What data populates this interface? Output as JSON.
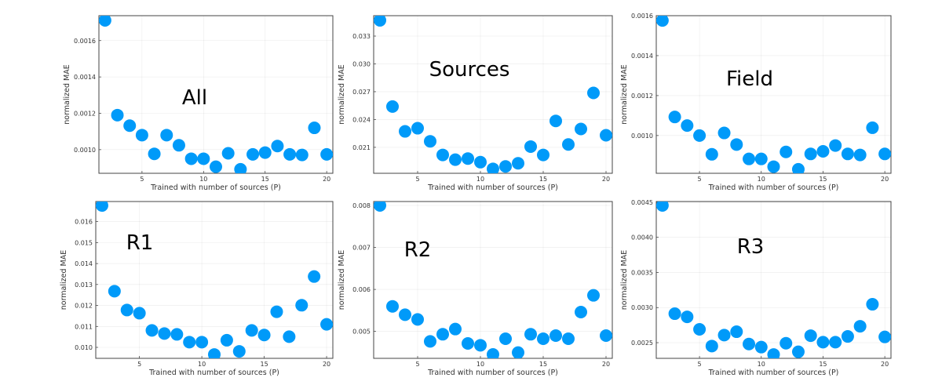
{
  "chart_data": [
    {
      "type": "scatter",
      "annotation": "All",
      "xlabel": "Trained with number of sources (P)",
      "ylabel": "normalized MAE",
      "xlim": [
        1.5,
        20.5
      ],
      "ylim": [
        0.00087,
        0.001737
      ],
      "xticks": [
        5,
        10,
        15,
        20
      ],
      "yticks": [
        0.001,
        0.0012,
        0.0014,
        0.0016
      ],
      "ytick_labels": [
        "0.0010",
        "0.0012",
        "0.0014",
        "0.0016"
      ],
      "grid": true,
      "color": "#009af9",
      "x": [
        2,
        3,
        4,
        5,
        6,
        7,
        8,
        9,
        10,
        11,
        12,
        13,
        14,
        15,
        16,
        17,
        18,
        19,
        20
      ],
      "y": [
        0.001711,
        0.00119,
        0.001132,
        0.00108,
        0.000977,
        0.00108,
        0.001024,
        0.00095,
        0.00095,
        0.000906,
        0.00098,
        0.000892,
        0.000974,
        0.000984,
        0.00102,
        0.000974,
        0.000971,
        0.00112,
        0.000974
      ]
    },
    {
      "type": "scatter",
      "annotation": "Sources",
      "xlabel": "Trained with number of sources (P)",
      "ylabel": "normalized MAE",
      "xlim": [
        1.5,
        20.5
      ],
      "ylim": [
        0.0182,
        0.0352
      ],
      "xticks": [
        5,
        10,
        15,
        20
      ],
      "yticks": [
        0.021,
        0.024,
        0.027,
        0.03,
        0.033
      ],
      "ytick_labels": [
        "0.021",
        "0.024",
        "0.027",
        "0.030",
        "0.033"
      ],
      "grid": true,
      "color": "#009af9",
      "x": [
        2,
        3,
        4,
        5,
        6,
        7,
        8,
        9,
        10,
        11,
        12,
        13,
        14,
        15,
        16,
        17,
        18,
        19,
        20
      ],
      "y": [
        0.0347,
        0.0254,
        0.02272,
        0.02306,
        0.02165,
        0.02018,
        0.01967,
        0.01979,
        0.0194,
        0.01868,
        0.01894,
        0.01928,
        0.02108,
        0.02018,
        0.02385,
        0.02131,
        0.02298,
        0.02687,
        0.0223
      ]
    },
    {
      "type": "scatter",
      "annotation": "Field",
      "xlabel": "Trained with number of sources (P)",
      "ylabel": "normalized MAE",
      "xlim": [
        1.5,
        20.5
      ],
      "ylim": [
        0.000811,
        0.0016
      ],
      "xticks": [
        5,
        10,
        15,
        20
      ],
      "yticks": [
        0.001,
        0.0012,
        0.0014,
        0.0016
      ],
      "ytick_labels": [
        "0.0010",
        "0.0012",
        "0.0014",
        "0.0016"
      ],
      "grid": true,
      "color": "#009af9",
      "x": [
        2,
        3,
        4,
        5,
        6,
        7,
        8,
        9,
        10,
        11,
        12,
        13,
        14,
        15,
        16,
        17,
        18,
        19,
        20
      ],
      "y": [
        0.001576,
        0.001093,
        0.00105,
        0.001,
        0.000906,
        0.001013,
        0.000955,
        0.000883,
        0.000883,
        0.000844,
        0.000918,
        0.000831,
        0.000908,
        0.000921,
        0.00095,
        0.000908,
        0.000903,
        0.001039,
        0.000908
      ]
    },
    {
      "type": "scatter",
      "annotation": "R1",
      "xlabel": "Trained with number of sources (P)",
      "ylabel": "normalized MAE",
      "xlim": [
        1.5,
        20.5
      ],
      "ylim": [
        0.009476,
        0.01696
      ],
      "xticks": [
        5,
        10,
        15,
        20
      ],
      "yticks": [
        0.01,
        0.011,
        0.012,
        0.013,
        0.014,
        0.015,
        0.016
      ],
      "ytick_labels": [
        "0.010",
        "0.011",
        "0.012",
        "0.013",
        "0.014",
        "0.015",
        "0.016"
      ],
      "grid": true,
      "color": "#009af9",
      "x": [
        2,
        3,
        4,
        5,
        6,
        7,
        8,
        9,
        10,
        11,
        12,
        13,
        14,
        15,
        16,
        17,
        18,
        19,
        20
      ],
      "y": [
        0.01677,
        0.01268,
        0.01178,
        0.01163,
        0.01081,
        0.01066,
        0.01062,
        0.01025,
        0.01025,
        0.00966,
        0.01034,
        0.00981,
        0.01081,
        0.01059,
        0.0117,
        0.01051,
        0.01201,
        0.01338,
        0.0111
      ]
    },
    {
      "type": "scatter",
      "annotation": "R2",
      "xlabel": "Trained with number of sources (P)",
      "ylabel": "normalized MAE",
      "xlim": [
        1.5,
        20.5
      ],
      "ylim": [
        0.004359,
        0.008093
      ],
      "xticks": [
        5,
        10,
        15,
        20
      ],
      "yticks": [
        0.005,
        0.006,
        0.007,
        0.008
      ],
      "ytick_labels": [
        "0.005",
        "0.006",
        "0.007",
        "0.008"
      ],
      "grid": true,
      "color": "#009af9",
      "x": [
        2,
        3,
        4,
        5,
        6,
        7,
        8,
        9,
        10,
        11,
        12,
        13,
        14,
        15,
        16,
        17,
        18,
        19,
        20
      ],
      "y": [
        0.008,
        0.005597,
        0.005398,
        0.005286,
        0.004763,
        0.004932,
        0.005056,
        0.004714,
        0.00467,
        0.004452,
        0.004826,
        0.004496,
        0.004932,
        0.004826,
        0.0049,
        0.004826,
        0.00546,
        0.005859,
        0.0049
      ]
    },
    {
      "type": "scatter",
      "annotation": "R3",
      "xlabel": "Trained with number of sources (P)",
      "ylabel": "normalized MAE",
      "xlim": [
        1.5,
        20.5
      ],
      "ylim": [
        0.002277,
        0.00451
      ],
      "xticks": [
        5,
        10,
        15,
        20
      ],
      "yticks": [
        0.0025,
        0.003,
        0.0035,
        0.004,
        0.0045
      ],
      "ytick_labels": [
        "0.0025",
        "0.0030",
        "0.0035",
        "0.0040",
        "0.0045"
      ],
      "grid": true,
      "color": "#009af9",
      "x": [
        2,
        3,
        4,
        5,
        6,
        7,
        8,
        9,
        10,
        11,
        12,
        13,
        14,
        15,
        16,
        17,
        18,
        19,
        20
      ],
      "y": [
        0.004454,
        0.002913,
        0.002868,
        0.00269,
        0.002452,
        0.002608,
        0.002656,
        0.002481,
        0.002437,
        0.002332,
        0.002492,
        0.00237,
        0.0026,
        0.002507,
        0.002507,
        0.002589,
        0.002734,
        0.003047,
        0.002582
      ]
    }
  ]
}
